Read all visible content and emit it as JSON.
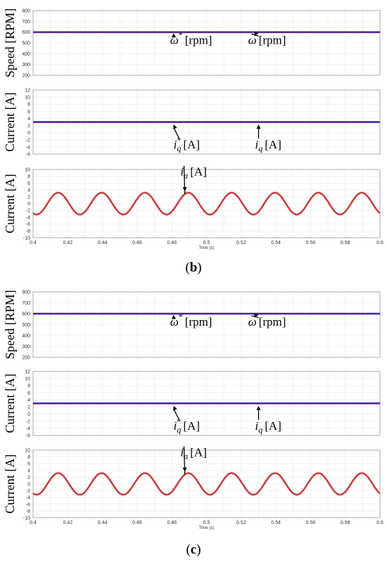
{
  "chart_data": [
    {
      "type": "line",
      "panel": "b-speed",
      "ylabel": "Speed [RPM]",
      "xlim": [
        0.4,
        0.6
      ],
      "ylim": [
        200,
        800
      ],
      "yticks": [
        200,
        300,
        400,
        500,
        600,
        700,
        800
      ],
      "grid": true,
      "series": [
        {
          "name": "ω* [rpm]",
          "color": "#1a1aa8",
          "x": [
            0.4,
            0.6
          ],
          "y": [
            600,
            600
          ]
        },
        {
          "name": "ω [rpm]",
          "color": "#6a2c9a",
          "x": [
            0.4,
            0.6
          ],
          "y": [
            600,
            600
          ]
        }
      ],
      "annotations": [
        {
          "base": "ω",
          "sup": "*",
          "unit": "[rpm]",
          "x": 0.479,
          "y": 490,
          "arrow_to": [
            0.481,
            590
          ]
        },
        {
          "base": "ω",
          "sup": "",
          "unit": "[rpm]",
          "x": 0.524,
          "y": 490,
          "arrow_to": [
            0.53,
            590
          ]
        }
      ]
    },
    {
      "type": "line",
      "panel": "b-iq",
      "ylabel": "Current [A]",
      "xlim": [
        0.4,
        0.6
      ],
      "ylim": [
        -6,
        12
      ],
      "yticks": [
        -6,
        -4,
        -2,
        0,
        2,
        4,
        6,
        8,
        10,
        12
      ],
      "grid": true,
      "series": [
        {
          "name": "iq* [A]",
          "color": "#1a1aa8",
          "x": [
            0.4,
            0.6
          ],
          "y": [
            3,
            3
          ]
        },
        {
          "name": "iq [A]",
          "color": "#6a2c9a",
          "x": [
            0.4,
            0.6
          ],
          "y": [
            3,
            3
          ]
        }
      ],
      "annotations": [
        {
          "base": "i",
          "sub": "q",
          "sup": "*",
          "unit": "[A]",
          "x": 0.481,
          "y": -4.4,
          "arrow_to": [
            0.481,
            2.3
          ]
        },
        {
          "base": "i",
          "sub": "q",
          "sup": "",
          "unit": "[A]",
          "x": 0.528,
          "y": -4.4,
          "arrow_to": [
            0.53,
            2.3
          ]
        }
      ]
    },
    {
      "type": "line",
      "panel": "b-ia",
      "ylabel": "Current [A]",
      "xlabel": "Time (s)",
      "xlim": [
        0.4,
        0.6
      ],
      "ylim": [
        -10,
        10
      ],
      "yticks": [
        -10,
        -8,
        -6,
        -4,
        -2,
        0,
        2,
        4,
        6,
        8,
        10
      ],
      "xticks": [
        0.4,
        0.42,
        0.44,
        0.46,
        0.48,
        0.5,
        0.52,
        0.54,
        0.56,
        0.58,
        0.6
      ],
      "grid": true,
      "series": [
        {
          "name": "ia [A]",
          "color": "#b02020",
          "x_start": 0.4,
          "x_end": 0.6,
          "amplitude": 3.2,
          "period": 0.025,
          "phase_peak_x": 0.4145
        }
      ],
      "annotations": [
        {
          "base": "i",
          "sub": "a",
          "sup": "",
          "unit": "[A]",
          "x": 0.485,
          "y": 8.2,
          "arrow_to": [
            0.4875,
            3.6
          ]
        }
      ]
    },
    {
      "type": "line",
      "panel": "c-speed",
      "ylabel": "Speed [RPM]",
      "xlim": [
        0.4,
        0.6
      ],
      "ylim": [
        200,
        800
      ],
      "yticks": [
        200,
        300,
        400,
        500,
        600,
        700,
        800
      ],
      "grid": true,
      "series": [
        {
          "name": "ω* [rpm]",
          "color": "#1a1aa8",
          "x": [
            0.4,
            0.6
          ],
          "y": [
            600,
            600
          ]
        },
        {
          "name": "ω [rpm]",
          "color": "#6a2c9a",
          "x": [
            0.4,
            0.6
          ],
          "y": [
            600,
            600
          ]
        }
      ],
      "annotations": [
        {
          "base": "ω",
          "sup": "*",
          "unit": "[rpm]",
          "x": 0.479,
          "y": 490,
          "arrow_to": [
            0.481,
            590
          ]
        },
        {
          "base": "ω",
          "sup": "",
          "unit": "[rpm]",
          "x": 0.524,
          "y": 490,
          "arrow_to": [
            0.53,
            590
          ]
        }
      ]
    },
    {
      "type": "line",
      "panel": "c-iq",
      "ylabel": "Current [A]",
      "xlim": [
        0.4,
        0.6
      ],
      "ylim": [
        -6,
        12
      ],
      "yticks": [
        -6,
        -4,
        -2,
        0,
        2,
        4,
        6,
        8,
        10,
        12
      ],
      "grid": true,
      "series": [
        {
          "name": "iq* [A]",
          "color": "#1a1aa8",
          "x": [
            0.4,
            0.6
          ],
          "y": [
            3,
            3
          ]
        },
        {
          "name": "iq [A]",
          "color": "#6a2c9a",
          "x": [
            0.4,
            0.6
          ],
          "y": [
            3,
            3
          ]
        }
      ],
      "annotations": [
        {
          "base": "i",
          "sub": "q",
          "sup": "*",
          "unit": "[A]",
          "x": 0.481,
          "y": -4.4,
          "arrow_to": [
            0.481,
            2.3
          ]
        },
        {
          "base": "i",
          "sub": "q",
          "sup": "",
          "unit": "[A]",
          "x": 0.528,
          "y": -4.4,
          "arrow_to": [
            0.53,
            2.3
          ]
        }
      ]
    },
    {
      "type": "line",
      "panel": "c-ia",
      "ylabel": "Current [A]",
      "xlabel": "Time (s)",
      "xlim": [
        0.4,
        0.6
      ],
      "ylim": [
        -10,
        10
      ],
      "yticks": [
        -10,
        -8,
        -6,
        -4,
        -2,
        0,
        2,
        4,
        6,
        8,
        10
      ],
      "xticks": [
        0.4,
        0.42,
        0.44,
        0.46,
        0.48,
        0.5,
        0.52,
        0.54,
        0.56,
        0.58,
        0.6
      ],
      "grid": true,
      "series": [
        {
          "name": "ia [A]",
          "color": "#b02020",
          "x_start": 0.4,
          "x_end": 0.6,
          "amplitude": 3.2,
          "period": 0.025,
          "phase_peak_x": 0.4145
        }
      ],
      "annotations": [
        {
          "base": "i",
          "sub": "a",
          "sup": "",
          "unit": "[A]",
          "x": 0.485,
          "y": 8.2,
          "arrow_to": [
            0.4875,
            3.6
          ]
        }
      ]
    }
  ],
  "captions": [
    {
      "open": "(",
      "letter": "b",
      "close": ")"
    },
    {
      "open": "(",
      "letter": "c",
      "close": ")"
    }
  ],
  "colors": {
    "grid": "#d8d8d8",
    "axis": "#9a9a9a",
    "sine_glow": "#f08a8a"
  }
}
